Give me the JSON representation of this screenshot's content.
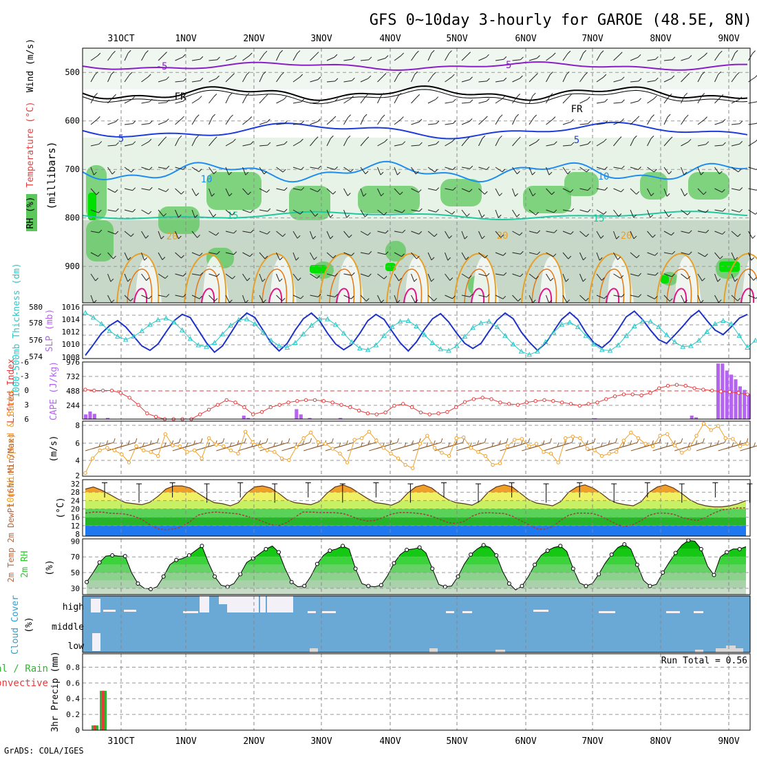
{
  "title": "GFS 0~10day 3-hourly for GAROE (48.5E, 8N)",
  "footer": "GrADS: COLA/IGES",
  "run_total": "Run Total = 0.56",
  "date_labels": [
    "31OCT",
    "1NOV",
    "2NOV",
    "3NOV",
    "4NOV",
    "5NOV",
    "6NOV",
    "7NOV",
    "8NOV",
    "9NOV"
  ],
  "colors": {
    "purple": "#8a1ec8",
    "black": "#000000",
    "blue": "#1e3cdc",
    "lightblue": "#1e8cf0",
    "teal": "#1ec8a0",
    "orange": "#e6a028",
    "magenta": "#e6148c",
    "green": "#32c832",
    "slp": "#1e32c8",
    "thickness": "#28c8c8",
    "li": "#e63c3c",
    "cape": "#b464f0",
    "wind": "#f0a028",
    "cloud": "#6aa9d6"
  },
  "panels": {
    "upper": {
      "ylabel_rh": "RH (%)",
      "ylabel_temp": "Temperature (°C)",
      "ylabel_wind": "Wind (m/s)",
      "ylabel_mb": "(millibars)",
      "levels": [
        "500",
        "600",
        "700",
        "800",
        "900"
      ],
      "contour_labels": [
        "-5",
        "-5",
        "FR",
        "FR",
        "5",
        "5",
        "10",
        "10",
        "15",
        "15",
        "20",
        "20",
        "20"
      ]
    },
    "slp": {
      "ylabel_left": "1000-500mb Thickness (dm)",
      "ylabel_right": "SLP (mb)",
      "left_ticks": [
        "580",
        "578",
        "576",
        "574"
      ],
      "right_ticks": [
        "1016",
        "1014",
        "1012",
        "1010",
        "1008"
      ]
    },
    "cape": {
      "ylabel_left": "Lifted Index",
      "ylabel_right": "CAPE (J/kg)",
      "left_ticks": [
        "-6",
        "-3",
        "0",
        "3",
        "6"
      ],
      "right_ticks": [
        "976",
        "732",
        "488",
        "244"
      ]
    },
    "wind": {
      "ylabel": "10m Wind Speed & Barbs",
      "unit": "(m/s)",
      "ticks": [
        "8",
        "6",
        "4",
        "2"
      ]
    },
    "temp": {
      "ylabel": "2m Temp 2m DewPt (6hr Min/Max)",
      "unit": "(°C)",
      "ticks": [
        "32",
        "28",
        "24",
        "20",
        "16",
        "12",
        "8"
      ]
    },
    "rh": {
      "ylabel": "2m RH",
      "unit": "(%)",
      "ticks": [
        "90",
        "70",
        "50",
        "30"
      ]
    },
    "cloud": {
      "ylabel": "Cloud Cover",
      "unit": "(%)",
      "levels": [
        "high",
        "middle",
        "low"
      ]
    },
    "precip": {
      "ylabel": "3hr Precip (mm)",
      "legend_total": "tal / Rain",
      "legend_conv": "Convective",
      "ticks": [
        "0.8",
        "0.6",
        "0.4",
        "0.2",
        "0"
      ]
    }
  },
  "chart_data": [
    {
      "type": "line",
      "name": "slp",
      "x": "3-hourly steps from 30OCT 18Z",
      "slp_mb": [
        1008.5,
        1010.2,
        1012,
        1013.2,
        1014,
        1013,
        1011.5,
        1010,
        1009.3,
        1010.3,
        1012.2,
        1014,
        1015,
        1014.5,
        1012.5,
        1010.5,
        1009,
        1010,
        1012,
        1014,
        1015.2,
        1014.5,
        1012.5,
        1010.5,
        1009.2,
        1010.4,
        1012.5,
        1014.3,
        1015.2,
        1014,
        1012,
        1010.3,
        1009.4,
        1010.2,
        1012,
        1014,
        1015,
        1014.2,
        1012.3,
        1010.5,
        1009.2,
        1010.6,
        1012.6,
        1014.3,
        1015.1,
        1013.8,
        1012,
        1010.4,
        1009.6,
        1010.4,
        1012.3,
        1014.1,
        1015.2,
        1014.3,
        1012.2,
        1010.6,
        1009.3,
        1010.4,
        1012.3,
        1014.2,
        1015.3,
        1014.2,
        1012.1,
        1010.5,
        1009.7,
        1010.8,
        1012.6,
        1014.6,
        1015.5,
        1014.2,
        1012.5,
        1011,
        1010.4,
        1011.7,
        1013.1,
        1014.6,
        1015.6,
        1014,
        1012.5,
        1011.8,
        1013,
        1014.4,
        1015
      ],
      "thickness_dm": [
        579.6,
        579,
        578.2,
        577.3,
        576.6,
        576.2,
        576.6,
        577.3,
        578.1,
        578.7,
        578.9,
        578.4,
        577.4,
        576.3,
        575.5,
        575.3,
        575.8,
        576.9,
        578,
        578.7,
        578.8,
        578.2,
        577.1,
        576.1,
        575.4,
        575.2,
        575.8,
        576.9,
        578,
        578.8,
        578.8,
        578.1,
        577,
        575.9,
        575.1,
        574.9,
        575.5,
        576.7,
        577.8,
        578.5,
        578.6,
        577.9,
        576.8,
        575.8,
        575,
        574.8,
        575.4,
        576.6,
        577.7,
        578.3,
        578.5,
        577.8,
        576.7,
        575.6,
        574.7,
        574.3,
        574.7,
        575.9,
        577.1,
        578.1,
        578.4,
        577.8,
        576.7,
        575.6,
        574.9,
        574.8,
        575.5,
        576.7,
        577.9,
        578.5,
        578.5,
        577.8,
        576.8,
        575.9,
        575.3,
        575.4,
        576.1,
        577.2,
        578.2,
        578.6,
        578.2,
        576.7,
        575.2,
        576.1
      ]
    },
    {
      "type": "line",
      "name": "lifted_index",
      "values": [
        -0.2,
        0,
        0,
        0,
        0.5,
        1.5,
        3,
        4.8,
        5.5,
        6,
        6,
        6,
        6,
        5,
        4,
        3,
        2,
        2.5,
        3.5,
        5,
        4.5,
        3.5,
        3,
        2.5,
        2.2,
        2,
        2,
        2.2,
        2.5,
        3,
        3.5,
        4.2,
        4.8,
        5,
        4.6,
        3.2,
        2.8,
        3.5,
        4.6,
        5,
        4.8,
        4.5,
        3.5,
        2.4,
        1.8,
        1.5,
        1.8,
        2.5,
        2.8,
        3,
        2.5,
        2.2,
        2,
        2.2,
        2.5,
        2.8,
        3.2,
        2.8,
        2.5,
        1.8,
        1.2,
        0.8,
        0.8,
        1,
        0.5,
        -0.5,
        -1,
        -1.2,
        -1,
        -0.5,
        -0.2,
        0,
        0.2,
        0.3,
        0.5,
        0.8
      ]
    },
    {
      "type": "bar",
      "name": "cape",
      "unit": "J/kg",
      "values": [
        80,
        130,
        90,
        0,
        0,
        20,
        0,
        0,
        0,
        0,
        0,
        0,
        0,
        0,
        0,
        0,
        0,
        0,
        0,
        0,
        0,
        0,
        0,
        0,
        0,
        0,
        0,
        0,
        0,
        0,
        0,
        0,
        0,
        0,
        0,
        0,
        60,
        20,
        0,
        0,
        0,
        0,
        0,
        0,
        0,
        0,
        0,
        0,
        170,
        80,
        0,
        20,
        0,
        0,
        0,
        0,
        0,
        0,
        20,
        0,
        0,
        0,
        0,
        0,
        0,
        0,
        0,
        0,
        0,
        0,
        0,
        0,
        0,
        0,
        0,
        0,
        0,
        0,
        0,
        0,
        0,
        0,
        0,
        0,
        0,
        0,
        0,
        0,
        0,
        0,
        0,
        0,
        0,
        0,
        0,
        0,
        0,
        0,
        0,
        0,
        0,
        0,
        0,
        0,
        0,
        0,
        0,
        0,
        0,
        0,
        0,
        0,
        0,
        0,
        0,
        0,
        15,
        0,
        0,
        0,
        0,
        0,
        0,
        0,
        0,
        0,
        0,
        0,
        0,
        0,
        0,
        0,
        0,
        0,
        0,
        0,
        0,
        0,
        60,
        30,
        0,
        0,
        0,
        0,
        950,
        950,
        830,
        760,
        680,
        560,
        500,
        430
      ]
    },
    {
      "type": "line",
      "name": "wind_speed_10m",
      "unit": "m/s",
      "values": [
        2.2,
        4,
        5,
        5.3,
        5,
        4.5,
        3.5,
        5.5,
        5,
        4.8,
        4.3,
        7,
        5.6,
        5.5,
        4.8,
        5,
        4,
        6.5,
        5.7,
        5.5,
        5,
        4.6,
        7.3,
        6,
        5.5,
        5,
        4.8,
        4,
        3.8,
        5.4,
        6.5,
        7.2,
        6,
        5.8,
        5.2,
        4.6,
        3.5,
        6.3,
        6.5,
        7.3,
        6.2,
        5.3,
        4.6,
        4,
        3.2,
        2.8,
        5.8,
        6.8,
        5.3,
        4.7,
        4.3,
        6.5,
        6.6,
        5.3,
        4.8,
        4.3,
        3.2,
        3.4,
        5.5,
        6.3,
        6.4,
        5.5,
        5.8,
        4.8,
        4.6,
        3.5,
        6.5,
        6.7,
        6.5,
        5.2,
        5,
        4.3,
        4.6,
        4.8,
        6.2,
        7.2,
        6.5,
        5.8,
        5.5,
        6.8,
        7,
        5.6,
        4.7,
        5.2,
        6.8,
        8.3,
        7.5,
        8,
        6.5,
        6.4,
        5.5,
        5.8
      ]
    },
    {
      "type": "area",
      "name": "temp_2m",
      "unit": "°C",
      "temp": [
        29.5,
        30.5,
        29,
        27,
        24.8,
        23,
        22.5,
        22,
        23.2,
        26,
        29.5,
        31,
        31,
        30,
        27.5,
        25,
        23,
        22.5,
        21.5,
        23,
        27.5,
        30.5,
        31,
        30,
        27.5,
        24.5,
        23,
        22.5,
        22,
        23.5,
        27.5,
        30.5,
        31.5,
        30,
        27.5,
        25,
        23,
        22.5,
        21.8,
        23.5,
        27.5,
        30.5,
        31.5,
        30,
        27,
        24.5,
        23,
        22.5,
        21.8,
        23.8,
        28,
        30.5,
        31.5,
        30.5,
        27.5,
        24.5,
        22.8,
        22.2,
        21.5,
        23.5,
        28,
        30.5,
        31.5,
        30,
        27.5,
        24.5,
        22.8,
        22,
        21.5,
        23.5,
        28,
        30.5,
        31.5,
        30,
        27.5,
        24.5,
        22.5,
        21.5,
        21,
        21,
        21.5,
        22.5,
        24
      ],
      "dewpt": [
        18,
        18.5,
        18.5,
        18,
        17.8,
        17.5,
        16.5,
        15,
        12.5,
        10.5,
        10,
        10.5,
        11.5,
        14,
        17,
        18,
        18.5,
        18.3,
        18,
        17.6,
        16.5,
        15.5,
        14,
        12.5,
        12,
        13.5,
        16,
        18.5,
        18.5,
        18.3,
        18.3,
        18.2,
        17.8,
        16.5,
        15,
        14.2,
        14.5,
        16,
        17.5,
        18.3,
        18.3,
        18,
        17.5,
        16.5,
        15,
        13.5,
        13,
        14,
        16.5,
        18,
        18.2,
        18,
        17.8,
        16.5,
        14.5,
        12.5,
        10.5,
        10.3,
        11.5,
        14.5,
        17,
        18,
        18,
        17.8,
        16.5,
        14.5,
        12.5,
        11.5,
        12.5,
        14.5,
        17,
        18,
        18,
        17.5,
        16,
        15,
        14.5,
        16,
        18,
        19.5,
        20,
        20.5,
        20.5
      ]
    },
    {
      "type": "area",
      "name": "rh_2m",
      "unit": "%",
      "values": [
        38,
        50,
        63,
        71,
        72,
        71,
        71,
        50,
        36,
        30,
        29,
        32,
        45,
        60,
        66,
        68,
        72,
        78,
        84,
        63,
        45,
        34,
        32,
        36,
        48,
        63,
        68,
        74,
        80,
        84,
        76,
        55,
        38,
        32,
        33,
        45,
        61,
        72,
        78,
        80,
        84,
        80,
        55,
        36,
        33,
        32,
        34,
        46,
        62,
        73,
        79,
        80,
        82,
        75,
        55,
        35,
        32,
        33,
        45,
        61,
        73,
        80,
        85,
        82,
        72,
        51,
        36,
        28,
        33,
        45,
        60,
        72,
        78,
        82,
        84,
        77,
        55,
        37,
        33,
        36,
        48,
        62,
        73,
        82,
        86,
        80,
        60,
        40,
        33,
        35,
        50,
        63,
        75,
        85,
        91,
        90,
        80,
        58,
        47,
        70,
        76,
        80,
        80,
        83
      ]
    },
    {
      "type": "bar",
      "name": "precip_3hr",
      "unit": "mm",
      "total": [
        0.06,
        0.5
      ],
      "convective": [
        0.06,
        0.5
      ]
    }
  ]
}
